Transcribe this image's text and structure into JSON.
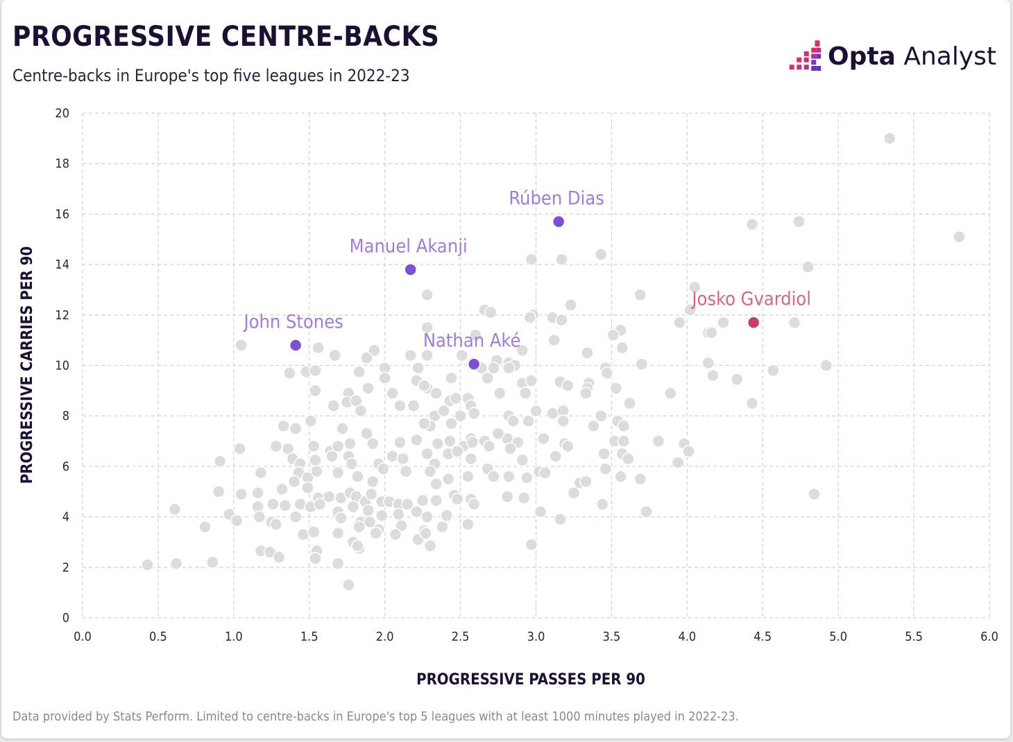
{
  "title": "PROGRESSIVE CENTRE-BACKS",
  "subtitle": "Centre-backs in Europe's top five leagues in 2022-23",
  "footnote": "Data provided by Stats Perform. Limited to centre-backs in Europe's top 5 leagues with at least 1000 minutes played in 2022-23.",
  "brand": {
    "bold": "Opta",
    "light": " Analyst",
    "icon": "opta-logo-icon"
  },
  "colors": {
    "base_point": "#dcdcdc",
    "base_point_stroke": "#ffffff",
    "highlight_purple": "#7b4fd6",
    "label_purple": "#a17be0",
    "highlight_red": "#c83e63",
    "label_red": "#d9667f",
    "grid": "#d4d4d4",
    "text": "#1b1033"
  },
  "chart_data": {
    "type": "scatter",
    "xlabel": "PROGRESSIVE PASSES PER 90",
    "ylabel": "PROGRESSIVE CARRIES PER 90",
    "xlim": [
      0,
      6
    ],
    "ylim": [
      0,
      20
    ],
    "xticks": [
      "0.0",
      "0.5",
      "1.0",
      "1.5",
      "2.0",
      "2.5",
      "3.0",
      "3.5",
      "4.0",
      "4.5",
      "5.0",
      "5.5",
      "6.0"
    ],
    "yticks": [
      "0",
      "2",
      "4",
      "6",
      "8",
      "10",
      "12",
      "14",
      "16",
      "18",
      "20"
    ],
    "grid": true,
    "highlighted": [
      {
        "name": "Rúben Dias",
        "x": 3.15,
        "y": 15.7,
        "color": "purple"
      },
      {
        "name": "Manuel Akanji",
        "x": 2.17,
        "y": 13.8,
        "color": "purple"
      },
      {
        "name": "John Stones",
        "x": 1.41,
        "y": 10.8,
        "color": "purple"
      },
      {
        "name": "Nathan Aké",
        "x": 2.59,
        "y": 10.05,
        "color": "purple"
      },
      {
        "name": "Josko Gvardiol",
        "x": 4.44,
        "y": 11.7,
        "color": "red"
      }
    ],
    "others": [
      [
        5.34,
        19.0
      ],
      [
        5.8,
        15.1
      ],
      [
        4.74,
        15.7
      ],
      [
        4.43,
        15.6
      ],
      [
        4.8,
        13.9
      ],
      [
        3.43,
        14.4
      ],
      [
        3.17,
        14.2
      ],
      [
        2.97,
        14.2
      ],
      [
        4.05,
        13.1
      ],
      [
        3.69,
        12.8
      ],
      [
        3.23,
        12.4
      ],
      [
        2.28,
        12.8
      ],
      [
        2.66,
        12.2
      ],
      [
        2.7,
        12.1
      ],
      [
        2.98,
        12.0
      ],
      [
        2.96,
        11.9
      ],
      [
        3.11,
        11.9
      ],
      [
        3.17,
        11.8
      ],
      [
        2.28,
        11.5
      ],
      [
        4.02,
        12.2
      ],
      [
        3.95,
        11.7
      ],
      [
        4.24,
        11.7
      ],
      [
        4.71,
        11.7
      ],
      [
        4.14,
        11.3
      ],
      [
        4.16,
        11.3
      ],
      [
        3.56,
        11.4
      ],
      [
        3.51,
        11.2
      ],
      [
        3.12,
        11.0
      ],
      [
        2.6,
        11.2
      ],
      [
        1.05,
        10.8
      ],
      [
        1.56,
        10.7
      ],
      [
        1.93,
        10.6
      ],
      [
        2.17,
        10.4
      ],
      [
        1.67,
        10.4
      ],
      [
        1.88,
        10.3
      ],
      [
        2.28,
        10.4
      ],
      [
        2.51,
        10.4
      ],
      [
        3.57,
        10.7
      ],
      [
        3.34,
        10.5
      ],
      [
        2.91,
        10.6
      ],
      [
        4.14,
        10.1
      ],
      [
        4.92,
        10.0
      ],
      [
        2.74,
        10.2
      ],
      [
        2.82,
        10.1
      ],
      [
        2.86,
        10.0
      ],
      [
        2.64,
        9.9
      ],
      [
        2.82,
        9.9
      ],
      [
        2.72,
        9.9
      ],
      [
        3.46,
        9.9
      ],
      [
        3.7,
        10.05
      ],
      [
        2.0,
        9.9
      ],
      [
        2.22,
        9.9
      ],
      [
        1.83,
        9.75
      ],
      [
        1.48,
        9.75
      ],
      [
        1.37,
        9.7
      ],
      [
        4.17,
        9.6
      ],
      [
        4.57,
        9.8
      ],
      [
        4.33,
        9.45
      ],
      [
        2.44,
        9.5
      ],
      [
        2.21,
        9.4
      ],
      [
        2.68,
        9.5
      ],
      [
        2.91,
        9.3
      ],
      [
        2.97,
        9.4
      ],
      [
        3.16,
        9.35
      ],
      [
        3.21,
        9.2
      ],
      [
        3.35,
        9.3
      ],
      [
        3.34,
        9.1
      ],
      [
        3.47,
        9.7
      ],
      [
        3.53,
        9.1
      ],
      [
        2.0,
        9.5
      ],
      [
        1.54,
        9.8
      ],
      [
        1.76,
        8.9
      ],
      [
        1.54,
        9.0
      ],
      [
        1.89,
        9.1
      ],
      [
        2.05,
        8.9
      ],
      [
        2.28,
        9.1
      ],
      [
        2.34,
        8.9
      ],
      [
        2.26,
        9.2
      ],
      [
        2.43,
        8.6
      ],
      [
        2.47,
        8.7
      ],
      [
        2.55,
        8.7
      ],
      [
        2.57,
        8.4
      ],
      [
        2.76,
        8.9
      ],
      [
        2.93,
        8.9
      ],
      [
        3.33,
        8.9
      ],
      [
        3.89,
        8.9
      ],
      [
        3.62,
        8.5
      ],
      [
        4.43,
        8.5
      ],
      [
        1.66,
        8.4
      ],
      [
        1.75,
        8.55
      ],
      [
        1.81,
        8.6
      ],
      [
        1.84,
        8.2
      ],
      [
        2.1,
        8.4
      ],
      [
        2.19,
        8.4
      ],
      [
        2.33,
        8.0
      ],
      [
        2.39,
        8.2
      ],
      [
        2.5,
        8.0
      ],
      [
        2.59,
        8.1
      ],
      [
        2.44,
        7.7
      ],
      [
        2.3,
        7.6
      ],
      [
        2.82,
        8.0
      ],
      [
        2.85,
        7.8
      ],
      [
        2.95,
        7.8
      ],
      [
        3.0,
        8.2
      ],
      [
        3.11,
        8.1
      ],
      [
        3.18,
        8.2
      ],
      [
        3.18,
        7.8
      ],
      [
        3.43,
        8.0
      ],
      [
        3.54,
        7.8
      ],
      [
        3.38,
        7.6
      ],
      [
        3.58,
        7.6
      ],
      [
        1.33,
        7.6
      ],
      [
        1.41,
        7.5
      ],
      [
        1.51,
        7.8
      ],
      [
        1.72,
        7.5
      ],
      [
        1.88,
        7.3
      ],
      [
        2.26,
        7.7
      ],
      [
        2.66,
        7.0
      ],
      [
        2.57,
        7.1
      ],
      [
        2.81,
        7.1
      ],
      [
        2.88,
        6.95
      ],
      [
        3.05,
        7.1
      ],
      [
        2.75,
        7.3
      ],
      [
        3.19,
        6.9
      ],
      [
        3.21,
        6.8
      ],
      [
        3.52,
        7.0
      ],
      [
        3.58,
        7.0
      ],
      [
        3.81,
        7.0
      ],
      [
        3.98,
        6.9
      ],
      [
        4.01,
        6.6
      ],
      [
        1.04,
        6.7
      ],
      [
        1.28,
        6.8
      ],
      [
        1.36,
        6.7
      ],
      [
        1.53,
        6.8
      ],
      [
        1.64,
        6.6
      ],
      [
        1.69,
        6.8
      ],
      [
        1.77,
        6.9
      ],
      [
        1.92,
        6.9
      ],
      [
        2.1,
        6.95
      ],
      [
        2.21,
        7.05
      ],
      [
        2.35,
        6.9
      ],
      [
        2.43,
        7.0
      ],
      [
        2.52,
        6.8
      ],
      [
        2.58,
        6.95
      ],
      [
        2.69,
        6.8
      ],
      [
        2.83,
        6.7
      ],
      [
        1.65,
        6.4
      ],
      [
        1.76,
        6.4
      ],
      [
        1.96,
        6.1
      ],
      [
        2.05,
        6.4
      ],
      [
        2.12,
        6.3
      ],
      [
        2.28,
        6.5
      ],
      [
        2.33,
        6.1
      ],
      [
        2.42,
        6.5
      ],
      [
        2.48,
        6.6
      ],
      [
        2.57,
        6.3
      ],
      [
        2.68,
        5.9
      ],
      [
        2.91,
        6.25
      ],
      [
        3.13,
        6.4
      ],
      [
        3.45,
        6.5
      ],
      [
        3.57,
        6.5
      ],
      [
        3.61,
        6.3
      ],
      [
        3.94,
        6.15
      ],
      [
        1.39,
        6.3
      ],
      [
        1.44,
        6.1
      ],
      [
        1.54,
        6.25
      ],
      [
        1.78,
        6.1
      ],
      [
        0.91,
        6.2
      ],
      [
        1.18,
        5.75
      ],
      [
        1.43,
        5.75
      ],
      [
        1.49,
        5.55
      ],
      [
        1.55,
        5.8
      ],
      [
        1.69,
        5.75
      ],
      [
        1.82,
        5.6
      ],
      [
        1.92,
        5.4
      ],
      [
        1.99,
        5.9
      ],
      [
        2.14,
        5.8
      ],
      [
        2.3,
        5.8
      ],
      [
        2.42,
        5.5
      ],
      [
        2.55,
        5.6
      ],
      [
        2.34,
        5.3
      ],
      [
        2.72,
        5.6
      ],
      [
        2.82,
        5.6
      ],
      [
        2.94,
        5.55
      ],
      [
        3.02,
        5.8
      ],
      [
        3.06,
        5.75
      ],
      [
        3.29,
        5.35
      ],
      [
        3.33,
        5.4
      ],
      [
        3.46,
        5.9
      ],
      [
        3.56,
        5.6
      ],
      [
        3.69,
        5.5
      ],
      [
        1.4,
        5.4
      ],
      [
        1.32,
        5.1
      ],
      [
        0.9,
        5.0
      ],
      [
        1.05,
        4.9
      ],
      [
        1.16,
        4.95
      ],
      [
        1.49,
        5.15
      ],
      [
        1.56,
        4.75
      ],
      [
        1.63,
        4.8
      ],
      [
        1.71,
        4.75
      ],
      [
        1.77,
        4.95
      ],
      [
        1.81,
        4.8
      ],
      [
        1.87,
        4.6
      ],
      [
        1.91,
        4.9
      ],
      [
        1.98,
        4.6
      ],
      [
        2.03,
        4.6
      ],
      [
        2.09,
        4.5
      ],
      [
        2.15,
        4.5
      ],
      [
        2.25,
        4.65
      ],
      [
        2.34,
        4.65
      ],
      [
        2.46,
        4.85
      ],
      [
        2.48,
        4.7
      ],
      [
        2.57,
        4.7
      ],
      [
        2.59,
        4.5
      ],
      [
        2.81,
        4.8
      ],
      [
        2.92,
        4.75
      ],
      [
        3.25,
        4.95
      ],
      [
        4.84,
        4.9
      ],
      [
        1.16,
        4.4
      ],
      [
        1.26,
        4.5
      ],
      [
        1.34,
        4.45
      ],
      [
        1.44,
        4.5
      ],
      [
        1.51,
        4.4
      ],
      [
        1.57,
        4.5
      ],
      [
        1.69,
        4.2
      ],
      [
        1.79,
        4.4
      ],
      [
        1.89,
        4.25
      ],
      [
        1.98,
        4.05
      ],
      [
        2.09,
        4.1
      ],
      [
        2.21,
        4.2
      ],
      [
        2.28,
        4.0
      ],
      [
        2.41,
        4.05
      ],
      [
        0.61,
        4.3
      ],
      [
        0.97,
        4.1
      ],
      [
        1.17,
        4.0
      ],
      [
        1.25,
        3.8
      ],
      [
        1.41,
        4.0
      ],
      [
        1.71,
        3.95
      ],
      [
        1.84,
        3.8
      ],
      [
        1.9,
        3.8
      ],
      [
        1.83,
        3.6
      ],
      [
        1.96,
        3.5
      ],
      [
        2.11,
        3.65
      ],
      [
        2.26,
        3.45
      ],
      [
        2.38,
        3.6
      ],
      [
        2.55,
        3.7
      ],
      [
        3.03,
        4.2
      ],
      [
        3.16,
        3.9
      ],
      [
        3.44,
        4.5
      ],
      [
        3.73,
        4.2
      ],
      [
        0.81,
        3.6
      ],
      [
        1.02,
        3.85
      ],
      [
        1.28,
        3.7
      ],
      [
        1.46,
        3.3
      ],
      [
        1.53,
        3.4
      ],
      [
        1.69,
        3.35
      ],
      [
        1.79,
        3.0
      ],
      [
        1.83,
        2.75
      ],
      [
        1.94,
        3.35
      ],
      [
        2.07,
        3.3
      ],
      [
        2.22,
        3.1
      ],
      [
        2.27,
        3.35
      ],
      [
        2.3,
        2.85
      ],
      [
        2.97,
        2.9
      ],
      [
        1.18,
        2.65
      ],
      [
        1.24,
        2.6
      ],
      [
        1.3,
        2.4
      ],
      [
        1.55,
        2.65
      ],
      [
        1.54,
        2.35
      ],
      [
        0.43,
        2.1
      ],
      [
        0.62,
        2.15
      ],
      [
        0.86,
        2.2
      ],
      [
        1.69,
        2.15
      ],
      [
        1.76,
        1.3
      ],
      [
        1.82,
        2.85
      ]
    ]
  }
}
